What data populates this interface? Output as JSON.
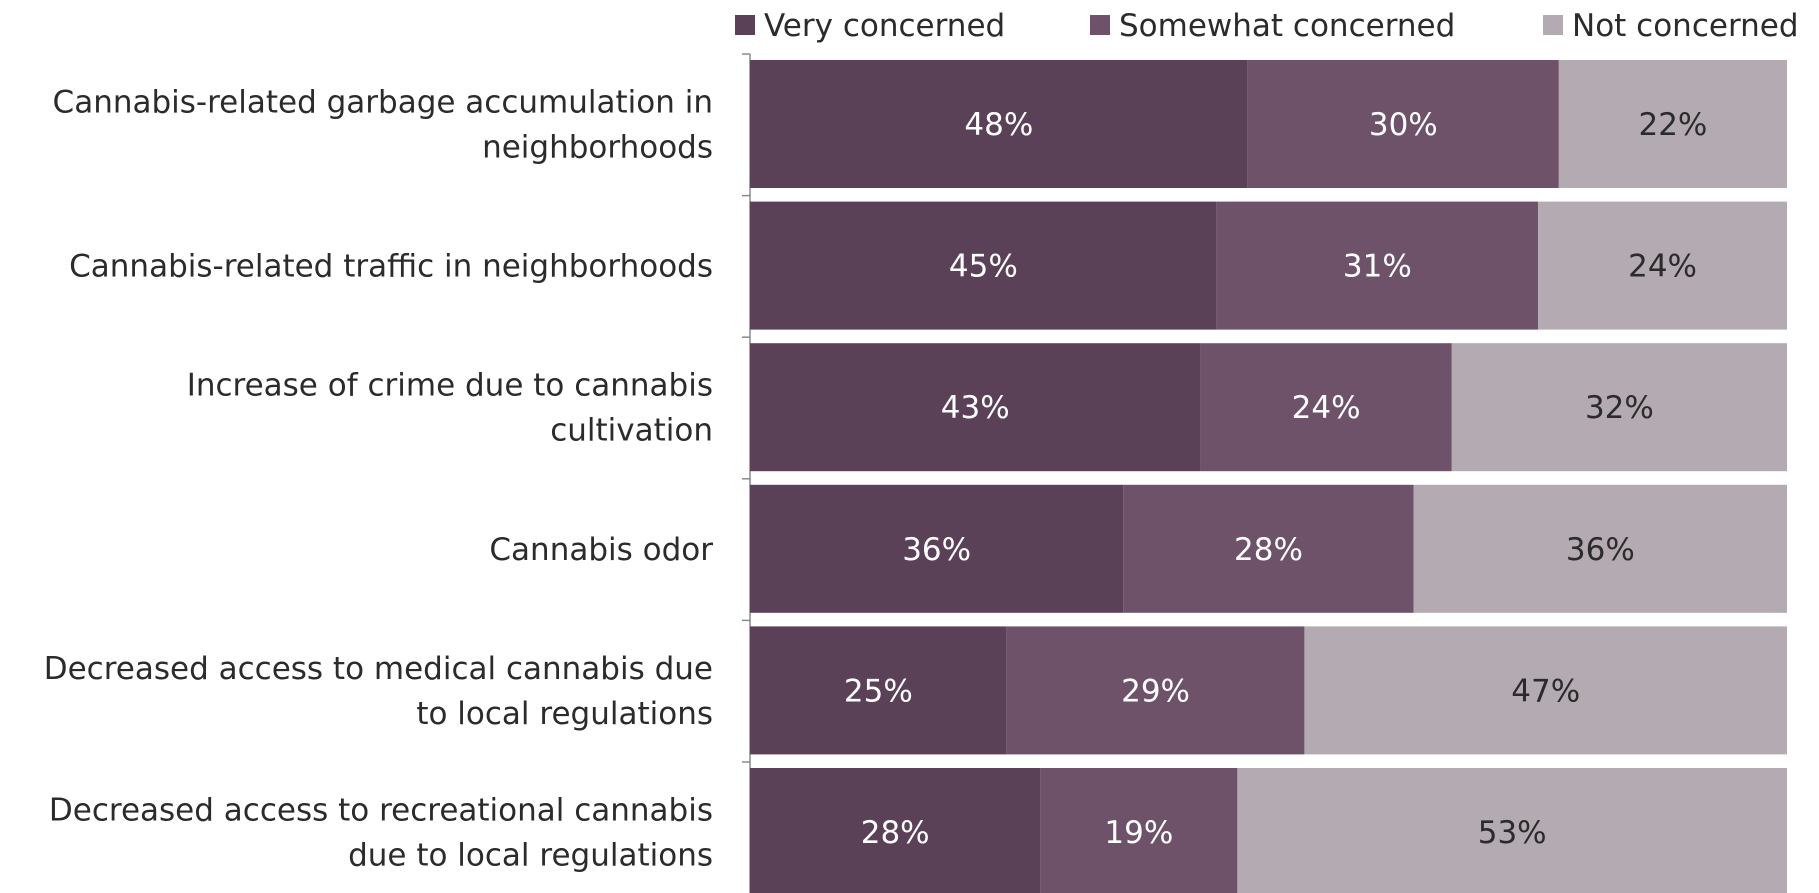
{
  "chart_data": {
    "type": "bar",
    "orientation": "horizontal",
    "stacked": true,
    "percent_stacked": true,
    "categories": [
      [
        "Cannabis-related garbage accumulation in",
        "neighborhoods"
      ],
      [
        "Cannabis-related traffic in neighborhoods"
      ],
      [
        "Increase of crime due to cannabis",
        "cultivation"
      ],
      [
        "Cannabis odor"
      ],
      [
        "Decreased access to medical cannabis due",
        "to local regulations"
      ],
      [
        "Decreased access to recreational cannabis",
        "due to local regulations"
      ]
    ],
    "series": [
      {
        "name": "Very concerned",
        "color": "#5b4157",
        "label_color": "#ffffff",
        "values": [
          48,
          45,
          43,
          36,
          25,
          28
        ]
      },
      {
        "name": "Somewhat concerned",
        "color": "#6e526a",
        "label_color": "#ffffff",
        "values": [
          30,
          31,
          24,
          28,
          29,
          19
        ]
      },
      {
        "name": "Not concerned",
        "color": "#b3aab2",
        "label_color": "#2b2b2b",
        "values": [
          22,
          24,
          32,
          36,
          47,
          53
        ]
      }
    ],
    "value_suffix": "%",
    "legend_position": "top",
    "grid": false
  }
}
